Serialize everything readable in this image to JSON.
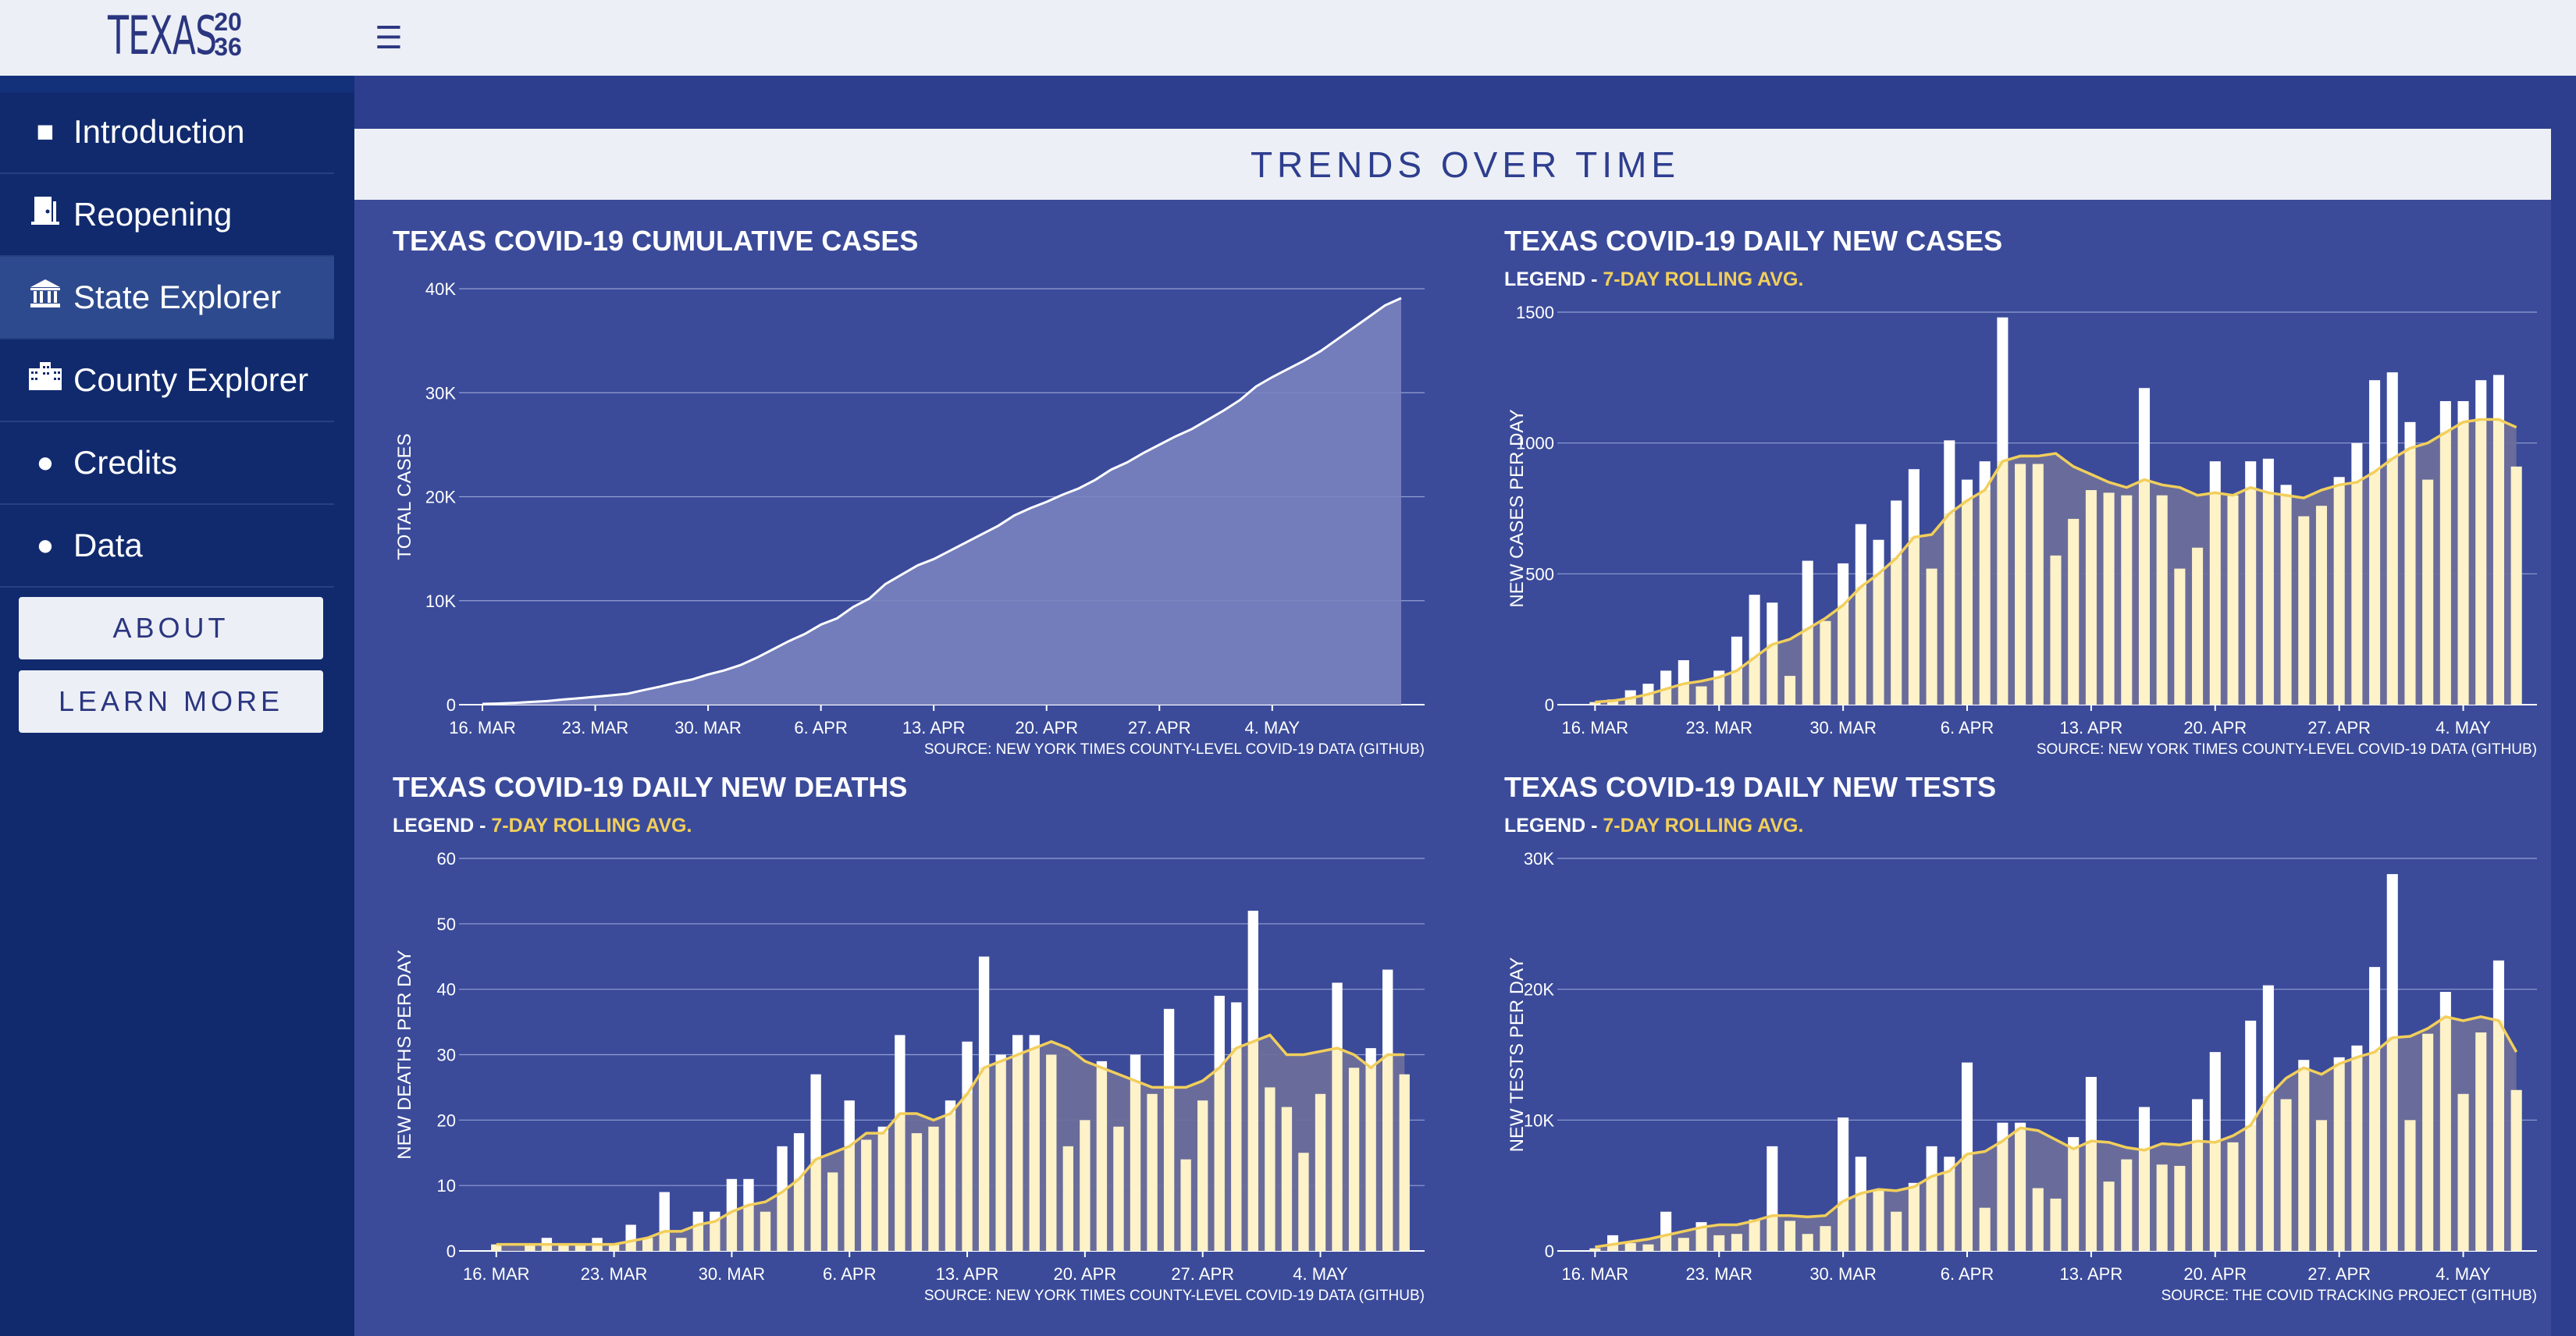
{
  "header": {
    "logo_word": "TEXAS",
    "logo_year_top": "20",
    "logo_year_bottom": "36",
    "menu_icon": "hamburger-icon"
  },
  "sidebar": {
    "items": [
      {
        "label": "Introduction",
        "icon": "square-icon"
      },
      {
        "label": "Reopening",
        "icon": "door-icon"
      },
      {
        "label": "State Explorer",
        "icon": "capitol-icon",
        "active": true
      },
      {
        "label": "County Explorer",
        "icon": "building-icon"
      },
      {
        "label": "Credits",
        "icon": "circle-icon"
      },
      {
        "label": "Data",
        "icon": "circle-icon"
      }
    ],
    "buttons": {
      "about": "ABOUT",
      "learn_more": "LEARN MORE"
    }
  },
  "section_title": "TRENDS OVER TIME",
  "colors": {
    "bar": "#fdf2c8",
    "bar_excess": "#ffffff",
    "avg_line": "#f2cf5b",
    "gap_fill": "#6c6e9a",
    "background": "#3b4b9a",
    "area_fill": "#7a83bf"
  },
  "chart_data": [
    {
      "type": "area",
      "title": "TEXAS COVID-19 CUMULATIVE CASES",
      "ylabel": "TOTAL CASES",
      "source": "SOURCE: NEW YORK TIMES COUNTY-LEVEL COVID-19 DATA (GITHUB)",
      "x_start": "16. MAR",
      "x_ticks": [
        "16. MAR",
        "23. MAR",
        "30. MAR",
        "6. APR",
        "13. APR",
        "20. APR",
        "27. APR",
        "4. MAY"
      ],
      "y_ticks": [
        "0",
        "10K",
        "20K",
        "30K",
        "40K"
      ],
      "ylim": [
        0,
        40000
      ],
      "values": [
        76,
        110,
        170,
        260,
        350,
        500,
        620,
        760,
        900,
        1050,
        1400,
        1730,
        2100,
        2420,
        2900,
        3300,
        3800,
        4500,
        5300,
        6100,
        6800,
        7700,
        8300,
        9400,
        10200,
        11600,
        12500,
        13400,
        14000,
        14800,
        15600,
        16400,
        17200,
        18200,
        18900,
        19500,
        20200,
        20800,
        21600,
        22600,
        23300,
        24200,
        25000,
        25800,
        26500,
        27400,
        28300,
        29300,
        30600,
        31500,
        32300,
        33100,
        34000,
        35100,
        36200,
        37300,
        38400,
        39100
      ]
    },
    {
      "type": "bar",
      "title": "TEXAS COVID-19 DAILY NEW CASES",
      "legend_prefix": "LEGEND - ",
      "legend_series": "7-DAY ROLLING AVG.",
      "ylabel": "NEW CASES PER DAY",
      "source": "SOURCE: NEW YORK TIMES COUNTY-LEVEL COVID-19 DATA (GITHUB)",
      "x_ticks": [
        "16. MAR",
        "23. MAR",
        "30. MAR",
        "6. APR",
        "13. APR",
        "20. APR",
        "27. APR",
        "4. MAY"
      ],
      "y_ticks": [
        "0",
        "500",
        "1000",
        "1500"
      ],
      "ylim": [
        0,
        1500
      ],
      "values": [
        10,
        20,
        55,
        80,
        130,
        170,
        70,
        130,
        260,
        420,
        390,
        110,
        550,
        320,
        540,
        690,
        630,
        780,
        900,
        520,
        1010,
        860,
        930,
        1480,
        920,
        920,
        570,
        710,
        820,
        810,
        800,
        1210,
        800,
        520,
        600,
        930,
        800,
        930,
        940,
        840,
        720,
        760,
        870,
        1000,
        1240,
        1270,
        1080,
        860,
        1160,
        1160,
        1240,
        1260,
        910
      ],
      "avg": [
        10,
        15,
        25,
        40,
        60,
        80,
        90,
        105,
        130,
        180,
        230,
        250,
        290,
        330,
        380,
        450,
        500,
        560,
        640,
        650,
        730,
        780,
        820,
        930,
        950,
        950,
        960,
        910,
        880,
        850,
        830,
        860,
        840,
        830,
        800,
        810,
        800,
        830,
        810,
        800,
        790,
        820,
        840,
        850,
        890,
        940,
        980,
        1000,
        1040,
        1080,
        1090,
        1090,
        1060
      ]
    },
    {
      "type": "bar",
      "title": "TEXAS COVID-19 DAILY NEW DEATHS",
      "legend_prefix": "LEGEND - ",
      "legend_series": "7-DAY ROLLING AVG.",
      "ylabel": "NEW DEATHS PER DAY",
      "source": "SOURCE: NEW YORK TIMES COUNTY-LEVEL COVID-19 DATA (GITHUB)",
      "x_ticks": [
        "16. MAR",
        "23. MAR",
        "30. MAR",
        "6. APR",
        "13. APR",
        "20. APR",
        "27. APR",
        "4. MAY"
      ],
      "y_ticks": [
        "0",
        "10",
        "20",
        "30",
        "40",
        "50",
        "60"
      ],
      "ylim": [
        0,
        60
      ],
      "values": [
        1,
        0,
        1,
        2,
        1,
        1,
        2,
        1,
        4,
        2,
        9,
        2,
        6,
        6,
        11,
        11,
        6,
        16,
        18,
        27,
        12,
        23,
        17,
        19,
        33,
        18,
        19,
        23,
        32,
        45,
        30,
        33,
        33,
        30,
        16,
        20,
        29,
        19,
        30,
        24,
        37,
        14,
        23,
        39,
        38,
        52,
        25,
        22,
        15,
        24,
        41,
        28,
        31,
        43,
        27
      ],
      "avg": [
        1,
        1,
        1,
        1,
        1,
        1,
        1,
        1,
        1.5,
        2,
        3,
        3,
        4,
        4.5,
        6,
        7,
        7.5,
        9,
        11,
        14,
        15,
        16,
        18,
        18,
        21,
        21,
        20,
        21,
        24,
        28,
        29,
        30,
        31,
        32,
        31,
        29,
        28,
        27,
        26,
        25,
        25,
        25,
        26,
        28,
        31,
        32,
        33,
        30,
        30,
        30.5,
        31,
        30,
        28,
        30,
        30
      ]
    },
    {
      "type": "bar",
      "title": "TEXAS COVID-19 DAILY NEW TESTS",
      "legend_prefix": "LEGEND - ",
      "legend_series": "7-DAY ROLLING AVG.",
      "ylabel": "NEW TESTS PER DAY",
      "source": "SOURCE: THE COVID TRACKING PROJECT (GITHUB)",
      "x_ticks": [
        "16. MAR",
        "23. MAR",
        "30. MAR",
        "6. APR",
        "13. APR",
        "20. APR",
        "27. APR",
        "4. MAY"
      ],
      "y_ticks": [
        "0",
        "10K",
        "20K",
        "30K"
      ],
      "ylim": [
        0,
        30000
      ],
      "values": [
        200,
        1200,
        600,
        500,
        3000,
        1000,
        2200,
        1200,
        1300,
        2400,
        8000,
        2300,
        1300,
        1900,
        10200,
        7200,
        4600,
        3000,
        5200,
        8000,
        7200,
        14400,
        3300,
        9800,
        9800,
        4800,
        4000,
        8700,
        13300,
        5300,
        7000,
        11000,
        6600,
        6500,
        11600,
        15200,
        8300,
        17600,
        20300,
        11600,
        14600,
        10000,
        14800,
        15700,
        21700,
        28800,
        10000,
        16600,
        19800,
        12000,
        16700,
        22200,
        12300
      ],
      "avg": [
        300,
        500,
        700,
        900,
        1200,
        1500,
        1800,
        2000,
        2000,
        2300,
        2700,
        2700,
        2600,
        2700,
        3800,
        4400,
        4700,
        4600,
        4900,
        5700,
        6100,
        7400,
        7600,
        8400,
        9400,
        9200,
        8500,
        7800,
        8400,
        8300,
        7900,
        7700,
        8200,
        8100,
        8400,
        8300,
        8800,
        9600,
        11800,
        13200,
        14000,
        13500,
        14300,
        14800,
        15200,
        16300,
        16400,
        17000,
        17900,
        17600,
        17900,
        17600,
        15200
      ]
    }
  ]
}
